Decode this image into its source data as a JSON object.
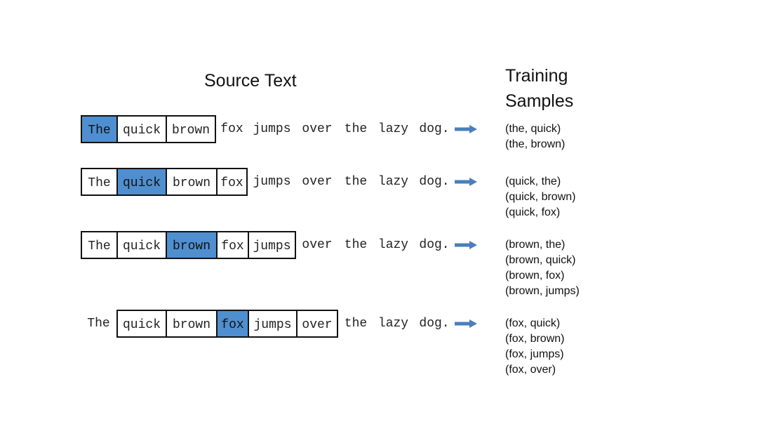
{
  "headings": {
    "source_text": "Source Text",
    "training_samples": "Training\nSamples"
  },
  "colors": {
    "highlight": "#4f8fcf",
    "arrow": "#4a7ebd"
  },
  "icons": {
    "arrow": "right-arrow-icon"
  },
  "sentence_words": [
    "The",
    "quick",
    "brown",
    "fox",
    "jumps",
    "over",
    "the",
    "lazy",
    "dog."
  ],
  "rows": [
    {
      "center_index": 0,
      "window": [
        0,
        2
      ],
      "samples": [
        "(the, quick)",
        "(the, brown)"
      ]
    },
    {
      "center_index": 1,
      "window": [
        0,
        3
      ],
      "samples": [
        "(quick, the)",
        "(quick, brown)",
        "(quick, fox)"
      ]
    },
    {
      "center_index": 2,
      "window": [
        0,
        4
      ],
      "samples": [
        "(brown, the)",
        "(brown, quick)",
        "(brown, fox)",
        "(brown, jumps)"
      ]
    },
    {
      "center_index": 3,
      "window": [
        1,
        5
      ],
      "samples": [
        "(fox, quick)",
        "(fox, brown)",
        "(fox, jumps)",
        "(fox, over)"
      ]
    }
  ]
}
